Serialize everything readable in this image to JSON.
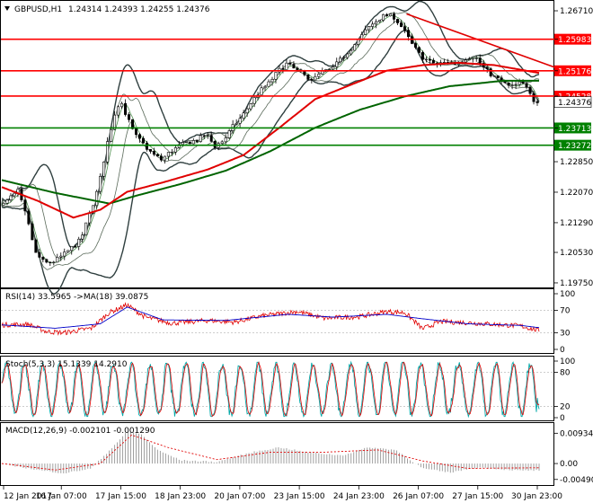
{
  "chart_data": {
    "type": "line",
    "symbol": "GBPUSD,H1",
    "ohlc_header": "1.24314 1.24393 1.24255 1.24376",
    "x_ticks": [
      "12 Jan 2017",
      "16 Jan 07:00",
      "17 Jan 15:00",
      "18 Jan 23:00",
      "20 Jan 07:00",
      "23 Jan 15:00",
      "24 Jan 23:00",
      "26 Jan 07:00",
      "27 Jan 15:00",
      "30 Jan 23:00"
    ],
    "price_panel": {
      "ylim": [
        1.1968,
        1.2694
      ],
      "y_ticks": [
        "1.26710",
        "1.25983",
        "1.25176",
        "1.24528",
        "1.23713",
        "1.22850",
        "1.22070",
        "1.21290",
        "1.20530",
        "1.19750"
      ],
      "horizontal_levels": [
        {
          "value": 1.25983,
          "label": "1.25983",
          "color": "#ff0000"
        },
        {
          "value": 1.25176,
          "label": "1.25176",
          "color": "#ff0000"
        },
        {
          "value": 1.24528,
          "label": "1.24528",
          "color": "#ff0000"
        },
        {
          "value": 1.23713,
          "label": "1.23713",
          "color": "#008000"
        },
        {
          "value": 1.23272,
          "label": "1.23272",
          "color": "#008000"
        }
      ],
      "current_price": {
        "value": 1.24376,
        "label": "1.24376"
      },
      "price_anchors": [
        [
          0,
          1.218
        ],
        [
          5,
          1.2175
        ],
        [
          10,
          1.219
        ],
        [
          20,
          1.221
        ],
        [
          30,
          1.214
        ],
        [
          40,
          1.205
        ],
        [
          50,
          1.2025
        ],
        [
          60,
          1.203
        ],
        [
          70,
          1.2045
        ],
        [
          80,
          1.2065
        ],
        [
          90,
          1.2085
        ],
        [
          100,
          1.215
        ],
        [
          110,
          1.222
        ],
        [
          120,
          1.2335
        ],
        [
          130,
          1.2425
        ],
        [
          135,
          1.244
        ],
        [
          140,
          1.241
        ],
        [
          150,
          1.2355
        ],
        [
          160,
          1.233
        ],
        [
          170,
          1.2305
        ],
        [
          180,
          1.229
        ],
        [
          190,
          1.231
        ],
        [
          200,
          1.2325
        ],
        [
          210,
          1.2335
        ],
        [
          220,
          1.234
        ],
        [
          230,
          1.2355
        ],
        [
          240,
          1.2325
        ],
        [
          250,
          1.234
        ],
        [
          260,
          1.2375
        ],
        [
          270,
          1.24
        ],
        [
          280,
          1.2435
        ],
        [
          290,
          1.2465
        ],
        [
          300,
          1.2485
        ],
        [
          310,
          1.2515
        ],
        [
          320,
          1.2535
        ],
        [
          330,
          1.252
        ],
        [
          340,
          1.2505
        ],
        [
          350,
          1.2495
        ],
        [
          360,
          1.2515
        ],
        [
          370,
          1.252
        ],
        [
          380,
          1.2545
        ],
        [
          390,
          1.257
        ],
        [
          400,
          1.2595
        ],
        [
          410,
          1.2625
        ],
        [
          420,
          1.2645
        ],
        [
          430,
          1.266
        ],
        [
          440,
          1.2655
        ],
        [
          450,
          1.2625
        ],
        [
          460,
          1.2585
        ],
        [
          470,
          1.2555
        ],
        [
          480,
          1.254
        ],
        [
          490,
          1.2535
        ],
        [
          500,
          1.254
        ],
        [
          510,
          1.2535
        ],
        [
          520,
          1.255
        ],
        [
          530,
          1.2555
        ],
        [
          540,
          1.2525
        ],
        [
          550,
          1.2505
        ],
        [
          560,
          1.249
        ],
        [
          570,
          1.2475
        ],
        [
          580,
          1.2485
        ],
        [
          590,
          1.2478
        ],
        [
          595,
          1.2445
        ],
        [
          600,
          1.2438
        ]
      ],
      "ma_slow_anchors": [
        [
          0,
          1.2238
        ],
        [
          60,
          1.2205
        ],
        [
          120,
          1.2178
        ],
        [
          150,
          1.2198
        ],
        [
          200,
          1.2228
        ],
        [
          250,
          1.2262
        ],
        [
          300,
          1.2312
        ],
        [
          350,
          1.2372
        ],
        [
          400,
          1.2418
        ],
        [
          450,
          1.2452
        ],
        [
          500,
          1.2478
        ],
        [
          560,
          1.2492
        ],
        [
          600,
          1.2492
        ]
      ],
      "ma_fast_anchors": [
        [
          0,
          1.222
        ],
        [
          40,
          1.2185
        ],
        [
          80,
          1.2142
        ],
        [
          110,
          1.2162
        ],
        [
          140,
          1.2208
        ],
        [
          180,
          1.2232
        ],
        [
          230,
          1.2265
        ],
        [
          270,
          1.2302
        ],
        [
          310,
          1.2372
        ],
        [
          350,
          1.2445
        ],
        [
          390,
          1.2482
        ],
        [
          430,
          1.2518
        ],
        [
          470,
          1.2532
        ],
        [
          510,
          1.2538
        ],
        [
          550,
          1.2532
        ],
        [
          600,
          1.2512
        ]
      ],
      "trendline": {
        "from": [
          452,
          1.2663
        ],
        "to": [
          618,
          1.2526
        ]
      }
    },
    "rsi_panel": {
      "label": "RSI(14) 33.5965  ->MA(18) 39.0875",
      "ylim": [
        0,
        100
      ],
      "y_ticks": [
        "100",
        "70",
        "30",
        "0"
      ],
      "rsi_anchors": [
        [
          0,
          44
        ],
        [
          30,
          45
        ],
        [
          50,
          32
        ],
        [
          70,
          30
        ],
        [
          100,
          38
        ],
        [
          120,
          66
        ],
        [
          140,
          80
        ],
        [
          160,
          58
        ],
        [
          190,
          47
        ],
        [
          230,
          52
        ],
        [
          260,
          49
        ],
        [
          290,
          60
        ],
        [
          330,
          68
        ],
        [
          360,
          56
        ],
        [
          400,
          59
        ],
        [
          430,
          68
        ],
        [
          450,
          66
        ],
        [
          470,
          37
        ],
        [
          490,
          50
        ],
        [
          520,
          48
        ],
        [
          550,
          45
        ],
        [
          580,
          42
        ],
        [
          600,
          33.6
        ]
      ],
      "ma_anchors": [
        [
          0,
          44
        ],
        [
          60,
          38
        ],
        [
          110,
          46
        ],
        [
          140,
          76
        ],
        [
          180,
          53
        ],
        [
          250,
          52
        ],
        [
          320,
          63
        ],
        [
          370,
          58
        ],
        [
          430,
          63
        ],
        [
          470,
          55
        ],
        [
          520,
          46
        ],
        [
          580,
          43
        ],
        [
          600,
          39.1
        ]
      ]
    },
    "stoch_panel": {
      "label": "Stoch(5,3,3) 15.1339  14.2910",
      "ylim": [
        0,
        100
      ],
      "y_ticks": [
        "100",
        "80",
        "20",
        "0"
      ]
    },
    "macd_panel": {
      "label": "MACD(12,26,9) -0.002101  -0.001290",
      "ylim": [
        -0.0058,
        0.0111
      ],
      "y_ticks": [
        "0.009345",
        "0.00",
        "-0.004907"
      ],
      "hist_anchors": [
        [
          0,
          0.0
        ],
        [
          40,
          -0.002
        ],
        [
          70,
          -0.003
        ],
        [
          100,
          -0.0015
        ],
        [
          120,
          0.004
        ],
        [
          140,
          0.0098
        ],
        [
          155,
          0.0092
        ],
        [
          175,
          0.004
        ],
        [
          200,
          0.001
        ],
        [
          240,
          0.0005
        ],
        [
          280,
          0.0035
        ],
        [
          310,
          0.005
        ],
        [
          340,
          0.0035
        ],
        [
          380,
          0.0025
        ],
        [
          410,
          0.005
        ],
        [
          440,
          0.0042
        ],
        [
          470,
          -0.0015
        ],
        [
          500,
          -0.0028
        ],
        [
          530,
          -0.0012
        ],
        [
          560,
          -0.0018
        ],
        [
          580,
          -0.0022
        ],
        [
          600,
          -0.0021
        ]
      ],
      "signal_anchors": [
        [
          0,
          0.0
        ],
        [
          60,
          -0.002
        ],
        [
          110,
          0.0
        ],
        [
          145,
          0.0088
        ],
        [
          185,
          0.005
        ],
        [
          240,
          0.0012
        ],
        [
          300,
          0.0035
        ],
        [
          360,
          0.0035
        ],
        [
          420,
          0.0042
        ],
        [
          470,
          0.0008
        ],
        [
          520,
          -0.0015
        ],
        [
          600,
          -0.0013
        ]
      ]
    }
  }
}
